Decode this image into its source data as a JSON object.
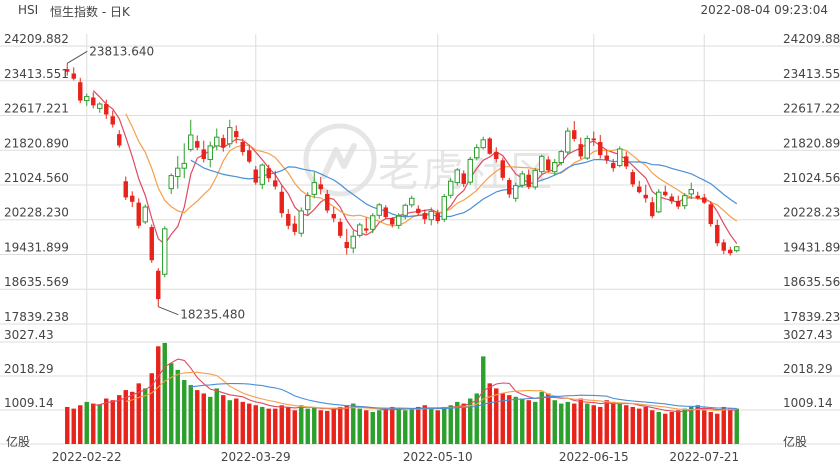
{
  "header": {
    "symbol": "HSI",
    "name": "恒生指数 - 日K",
    "datetime": "2022-08-04 09:23:04"
  },
  "watermark": "老虎社区",
  "colors": {
    "up": "#2ca02c",
    "down": "#e8231b",
    "ma5": "#e04a62",
    "ma10": "#f5a04a",
    "ma20": "#4a8fd6",
    "grid": "#dddddd"
  },
  "chart_data": [
    {
      "type": "candlestick",
      "panel": "price",
      "y_ticks": [
        "24209.882",
        "23413.551",
        "22617.221",
        "21820.890",
        "21024.560",
        "20228.230",
        "19431.899",
        "18635.569",
        "17839.238"
      ],
      "ylim": [
        17839.238,
        24209.882
      ],
      "x_ticks": [
        "2022-02-22",
        "2022-03-29",
        "2022-05-10",
        "2022-06-15",
        "2022-07-21"
      ],
      "annotations": [
        {
          "label": "23813.640",
          "kind": "max",
          "value": 23813.64
        },
        {
          "label": "18235.480",
          "kind": "min",
          "value": 18235.48
        }
      ],
      "candles": [
        [
          23680.0,
          23813.64,
          23530.0,
          23620.0
        ],
        [
          23580.0,
          23720.0,
          23420.0,
          23460.0
        ],
        [
          23380.0,
          23480.0,
          22900.0,
          22960.0
        ],
        [
          22960.0,
          23120.0,
          22840.0,
          23050.0
        ],
        [
          23030.0,
          23150.0,
          22780.0,
          22850.0
        ],
        [
          22780.0,
          22920.0,
          22680.0,
          22880.0
        ],
        [
          22880.0,
          22980.0,
          22540.0,
          22640.0
        ],
        [
          22600.0,
          22730.0,
          22340.0,
          22410.0
        ],
        [
          22190.0,
          22280.0,
          21880.0,
          21930.0
        ],
        [
          21110.0,
          21220.0,
          20680.0,
          20740.0
        ],
        [
          20780.0,
          20880.0,
          20520.0,
          20640.0
        ],
        [
          20620.0,
          20720.0,
          20030.0,
          20090.0
        ],
        [
          20180.0,
          20580.0,
          20130.0,
          20520.0
        ],
        [
          20060.0,
          20120.0,
          19240.0,
          19300.0
        ],
        [
          19060.0,
          19120.0,
          18235.48,
          18410.0
        ],
        [
          18980.0,
          20080.0,
          18910.0,
          20020.0
        ],
        [
          20940.0,
          21290.0,
          20820.0,
          21240.0
        ],
        [
          21220.0,
          21690.0,
          20940.0,
          21410.0
        ],
        [
          21410.0,
          21980.0,
          21180.0,
          21520.0
        ],
        [
          21840.0,
          22520.0,
          21790.0,
          22170.0
        ],
        [
          22030.0,
          22160.0,
          21820.0,
          21880.0
        ],
        [
          21840.0,
          22040.0,
          21540.0,
          21620.0
        ],
        [
          21610.0,
          22020.0,
          21430.0,
          21920.0
        ],
        [
          21920.0,
          22320.0,
          21820.0,
          22120.0
        ],
        [
          22100.0,
          22180.0,
          21790.0,
          21880.0
        ],
        [
          21970.0,
          22520.0,
          21880.0,
          22340.0
        ],
        [
          22260.0,
          22390.0,
          21980.0,
          22120.0
        ],
        [
          22010.0,
          22090.0,
          21700.0,
          21780.0
        ],
        [
          21820.0,
          21950.0,
          21520.0,
          21560.0
        ],
        [
          21380.0,
          21460.0,
          21030.0,
          21080.0
        ],
        [
          21040.0,
          21520.0,
          20930.0,
          21480.0
        ],
        [
          21410.0,
          21490.0,
          21090.0,
          21180.0
        ],
        [
          21130.0,
          21350.0,
          20920.0,
          20990.0
        ],
        [
          20870.0,
          21010.0,
          20280.0,
          20380.0
        ],
        [
          20360.0,
          20470.0,
          20010.0,
          20090.0
        ],
        [
          20140.0,
          20320.0,
          19870.0,
          19950.0
        ],
        [
          19920.0,
          20510.0,
          19840.0,
          20430.0
        ],
        [
          20460.0,
          20860.0,
          20310.0,
          20780.0
        ],
        [
          20810.0,
          21320.0,
          20720.0,
          21080.0
        ],
        [
          21040.0,
          21210.0,
          20810.0,
          20930.0
        ],
        [
          20820.0,
          20910.0,
          20380.0,
          20440.0
        ],
        [
          20360.0,
          20520.0,
          20170.0,
          20260.0
        ],
        [
          20180.0,
          20260.0,
          19810.0,
          19860.0
        ],
        [
          19720.0,
          20020.0,
          19430.0,
          19580.0
        ],
        [
          19580.0,
          19980.0,
          19460.0,
          19850.0
        ],
        [
          19870.0,
          20160.0,
          19820.0,
          20110.0
        ],
        [
          20030.0,
          20280.0,
          19910.0,
          19980.0
        ],
        [
          20010.0,
          20380.0,
          19920.0,
          20320.0
        ],
        [
          20330.0,
          20610.0,
          20250.0,
          20570.0
        ],
        [
          20510.0,
          20560.0,
          20250.0,
          20290.0
        ],
        [
          20260.0,
          20290.0,
          20050.0,
          20120.0
        ],
        [
          20100.0,
          20380.0,
          20020.0,
          20310.0
        ],
        [
          20330.0,
          20600.0,
          20240.0,
          20560.0
        ],
        [
          20570.0,
          20780.0,
          20510.0,
          20720.0
        ],
        [
          20480.0,
          20560.0,
          20330.0,
          20380.0
        ],
        [
          20380.0,
          20460.0,
          20130.0,
          20240.0
        ],
        [
          20230.0,
          20510.0,
          20100.0,
          20420.0
        ],
        [
          20380.0,
          20460.0,
          20140.0,
          20200.0
        ],
        [
          20240.0,
          20820.0,
          20180.0,
          20760.0
        ],
        [
          20790.0,
          21180.0,
          20720.0,
          21110.0
        ],
        [
          21080.0,
          21410.0,
          21010.0,
          21370.0
        ],
        [
          21290.0,
          21360.0,
          20980.0,
          21050.0
        ],
        [
          21090.0,
          21670.0,
          21030.0,
          21610.0
        ],
        [
          21650.0,
          21960.0,
          21590.0,
          21880.0
        ],
        [
          21880.0,
          22130.0,
          21840.0,
          22060.0
        ],
        [
          22090.0,
          22120.0,
          21720.0,
          21740.0
        ],
        [
          21780.0,
          21890.0,
          21540.0,
          21620.0
        ],
        [
          21590.0,
          21650.0,
          21130.0,
          21190.0
        ],
        [
          21140.0,
          21190.0,
          20730.0,
          20810.0
        ],
        [
          20720.0,
          21080.0,
          20640.0,
          21010.0
        ],
        [
          21020.0,
          21350.0,
          20960.0,
          21280.0
        ],
        [
          21260.0,
          21380.0,
          20930.0,
          20980.0
        ],
        [
          20980.0,
          21410.0,
          20920.0,
          21360.0
        ],
        [
          21330.0,
          21720.0,
          21270.0,
          21680.0
        ],
        [
          21610.0,
          21680.0,
          21320.0,
          21360.0
        ],
        [
          21330.0,
          21620.0,
          21260.0,
          21540.0
        ],
        [
          21540.0,
          21830.0,
          21470.0,
          21790.0
        ],
        [
          21780.0,
          22340.0,
          21730.0,
          22260.0
        ],
        [
          22280.0,
          22490.0,
          22020.0,
          22080.0
        ],
        [
          21960.0,
          22110.0,
          21620.0,
          21680.0
        ],
        [
          21640.0,
          22160.0,
          21600.0,
          22090.0
        ],
        [
          22090.0,
          22250.0,
          21920.0,
          22050.0
        ],
        [
          22010.0,
          22170.0,
          21630.0,
          21710.0
        ],
        [
          21700.0,
          21830.0,
          21510.0,
          21590.0
        ],
        [
          21530.0,
          21620.0,
          21330.0,
          21410.0
        ],
        [
          21470.0,
          21910.0,
          21430.0,
          21850.0
        ],
        [
          21680.0,
          21790.0,
          21390.0,
          21450.0
        ],
        [
          21320.0,
          21380.0,
          20980.0,
          21040.0
        ],
        [
          20990.0,
          21120.0,
          20830.0,
          20860.0
        ],
        [
          20800.0,
          21030.0,
          20620.0,
          20720.0
        ],
        [
          20630.0,
          20750.0,
          20260.0,
          20310.0
        ],
        [
          20410.0,
          20930.0,
          20380.0,
          20860.0
        ],
        [
          20870.0,
          21010.0,
          20760.0,
          20790.0
        ],
        [
          20760.0,
          20830.0,
          20590.0,
          20650.0
        ],
        [
          20660.0,
          20780.0,
          20470.0,
          20530.0
        ],
        [
          20550.0,
          20840.0,
          20470.0,
          20780.0
        ],
        [
          20820.0,
          21080.0,
          20700.0,
          20920.0
        ],
        [
          20780.0,
          20870.0,
          20690.0,
          20720.0
        ],
        [
          20740.0,
          20820.0,
          20590.0,
          20620.0
        ],
        [
          20580.0,
          20650.0,
          20070.0,
          20130.0
        ],
        [
          20110.0,
          20230.0,
          19620.0,
          19690.0
        ],
        [
          19710.0,
          19780.0,
          19440.0,
          19520.0
        ],
        [
          19540.0,
          19610.0,
          19410.0,
          19460.0
        ],
        [
          19520.0,
          19620.0,
          19480.0,
          19610.0
        ]
      ]
    },
    {
      "type": "bar",
      "panel": "volume",
      "y_ticks": [
        "3027.43",
        "2018.29",
        "1009.14"
      ],
      "ylim": [
        0,
        3027.43
      ],
      "volumes": [
        1100.0,
        1050.0,
        1150.0,
        1250.0,
        1200.0,
        1180.0,
        1350.0,
        1300.0,
        1450.0,
        1600.0,
        1550.0,
        1800.0,
        1650.0,
        2100.0,
        2900.0,
        3000.0,
        2400.0,
        2200.0,
        1900.0,
        1750.0,
        1600.0,
        1500.0,
        1400.0,
        1650.0,
        1450.0,
        1300.0,
        1350.0,
        1250.0,
        1200.0,
        1150.0,
        1100.0,
        1050.0,
        1050.0,
        1150.0,
        1100.0,
        1000.0,
        1150.0,
        1050.0,
        1100.0,
        1000.0,
        980.0,
        1050.0,
        1100.0,
        1150.0,
        1200.0,
        1050.0,
        1000.0,
        950.0,
        1000.0,
        1050.0,
        1100.0,
        1050.0,
        1000.0,
        1050.0,
        1100.0,
        1150.0,
        1050.0,
        1000.0,
        1100.0,
        1150.0,
        1250.0,
        1200.0,
        1350.0,
        1500.0,
        2600.0,
        1800.0,
        1650.0,
        1500.0,
        1450.0,
        1400.0,
        1350.0,
        1300.0,
        1250.0,
        1550.0,
        1500.0,
        1300.0,
        1200.0,
        1250.0,
        1200.0,
        1350.0,
        1200.0,
        1150.0,
        1100.0,
        1300.0,
        1250.0,
        1200.0,
        1150.0,
        1100.0,
        1050.0,
        1100.0,
        1000.0,
        950.0,
        900.0,
        950.0,
        1000.0,
        1050.0,
        1100.0,
        1150.0,
        1000.0,
        950.0,
        900.0,
        1100.0,
        1050.0,
        1050.0
      ]
    }
  ],
  "volume_unit": "亿股"
}
